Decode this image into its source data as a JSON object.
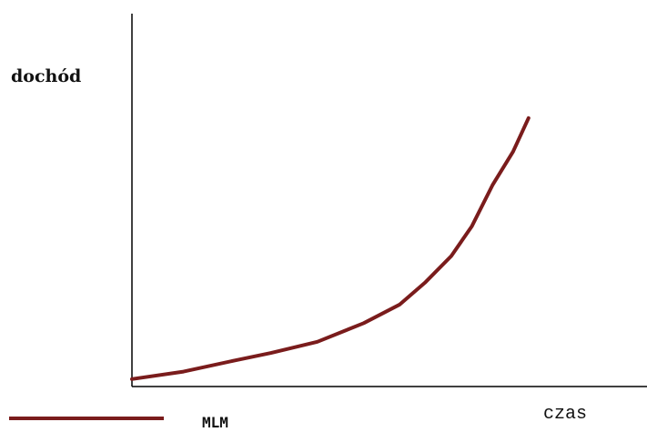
{
  "chart_data": {
    "type": "line",
    "y_label": "dochód",
    "x_label": "czas",
    "x": [
      0,
      10,
      20,
      27,
      36,
      45,
      52,
      57,
      62,
      66,
      70,
      74,
      77
    ],
    "series": [
      {
        "name": "MLM",
        "color": "#7a1c1c",
        "values": [
          2,
          4,
          7,
          9,
          12,
          17,
          22,
          28,
          35,
          43,
          54,
          63,
          72
        ]
      }
    ],
    "xlim": [
      0,
      100
    ],
    "ylim": [
      0,
      100
    ]
  }
}
